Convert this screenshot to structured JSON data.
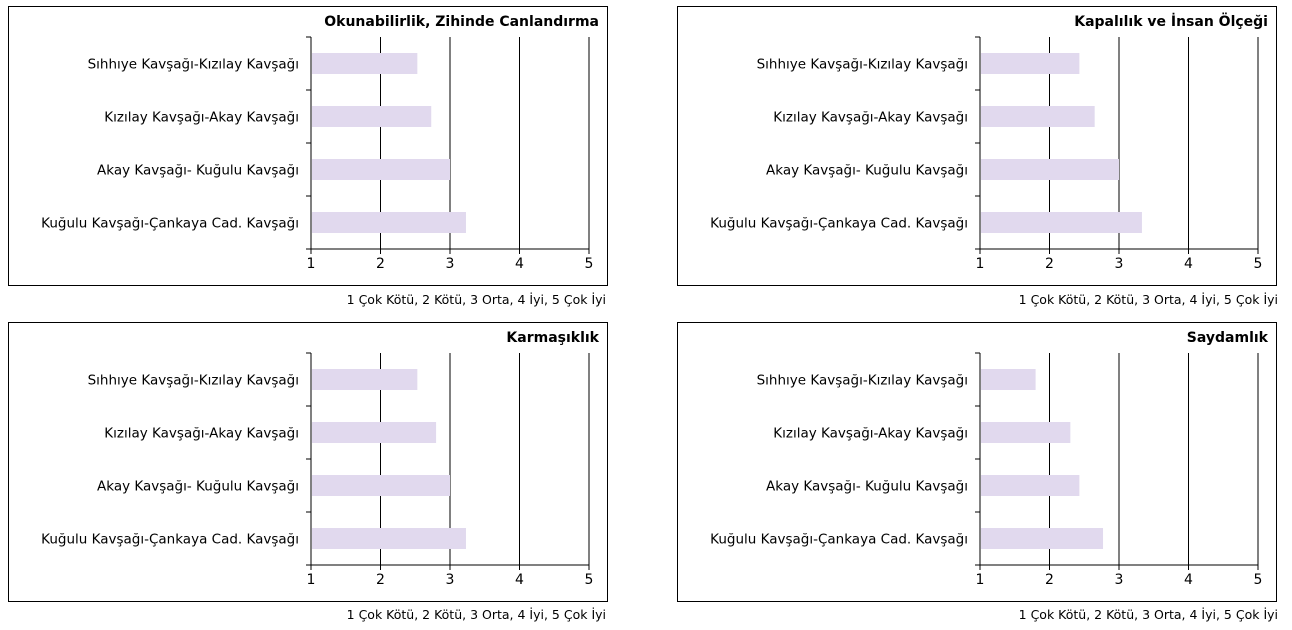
{
  "colors": {
    "bar": "#e1d9ee",
    "axis": "#000000",
    "grid": "#000000"
  },
  "chart_data": [
    {
      "type": "bar",
      "title": "Okunabilirlik, Zihinde Canlandırma",
      "categories": [
        "Sıhhıye Kavşağı-Kızılay Kavşağı",
        "Kızılay Kavşağı-Akay Kavşağı",
        "Akay Kavşağı- Kuğulu Kavşağı",
        "Kuğulu Kavşağı-Çankaya Cad. Kavşağı"
      ],
      "values": [
        2.53,
        2.73,
        3.0,
        3.23
      ],
      "xlim": [
        1,
        5
      ],
      "xticks": [
        "1",
        "2",
        "3",
        "4",
        "5"
      ],
      "grid": true,
      "caption": "1 Çok Kötü, 2 Kötü, 3 Orta, 4 İyi, 5 Çok İyi"
    },
    {
      "type": "bar",
      "title": "Kapalılık ve İnsan Ölçeği",
      "categories": [
        "Sıhhıye Kavşağı-Kızılay Kavşağı",
        "Kızılay Kavşağı-Akay Kavşağı",
        "Akay Kavşağı- Kuğulu Kavşağı",
        "Kuğulu Kavşağı-Çankaya Cad. Kavşağı"
      ],
      "values": [
        2.43,
        2.65,
        3.0,
        3.33
      ],
      "xlim": [
        1,
        5
      ],
      "xticks": [
        "1",
        "2",
        "3",
        "4",
        "5"
      ],
      "grid": true,
      "caption": "1 Çok Kötü, 2 Kötü, 3 Orta, 4 İyi, 5 Çok İyi"
    },
    {
      "type": "bar",
      "title": "Karmaşıklık",
      "categories": [
        "Sıhhıye Kavşağı-Kızılay Kavşağı",
        "Kızılay Kavşağı-Akay Kavşağı",
        "Akay Kavşağı- Kuğulu Kavşağı",
        "Kuğulu Kavşağı-Çankaya Cad. Kavşağı"
      ],
      "values": [
        2.53,
        2.8,
        3.0,
        3.23
      ],
      "xlim": [
        1,
        5
      ],
      "xticks": [
        "1",
        "2",
        "3",
        "4",
        "5"
      ],
      "grid": true,
      "caption": "1 Çok Kötü, 2 Kötü, 3 Orta, 4 İyi, 5 Çok İyi"
    },
    {
      "type": "bar",
      "title": "Saydamlık",
      "categories": [
        "Sıhhıye Kavşağı-Kızılay Kavşağı",
        "Kızılay Kavşağı-Akay Kavşağı",
        "Akay Kavşağı- Kuğulu Kavşağı",
        "Kuğulu Kavşağı-Çankaya Cad. Kavşağı"
      ],
      "values": [
        1.8,
        2.3,
        2.43,
        2.77
      ],
      "xlim": [
        1,
        5
      ],
      "xticks": [
        "1",
        "2",
        "3",
        "4",
        "5"
      ],
      "grid": true,
      "caption": "1 Çok Kötü, 2 Kötü, 3 Orta, 4 İyi, 5 Çok İyi"
    }
  ]
}
